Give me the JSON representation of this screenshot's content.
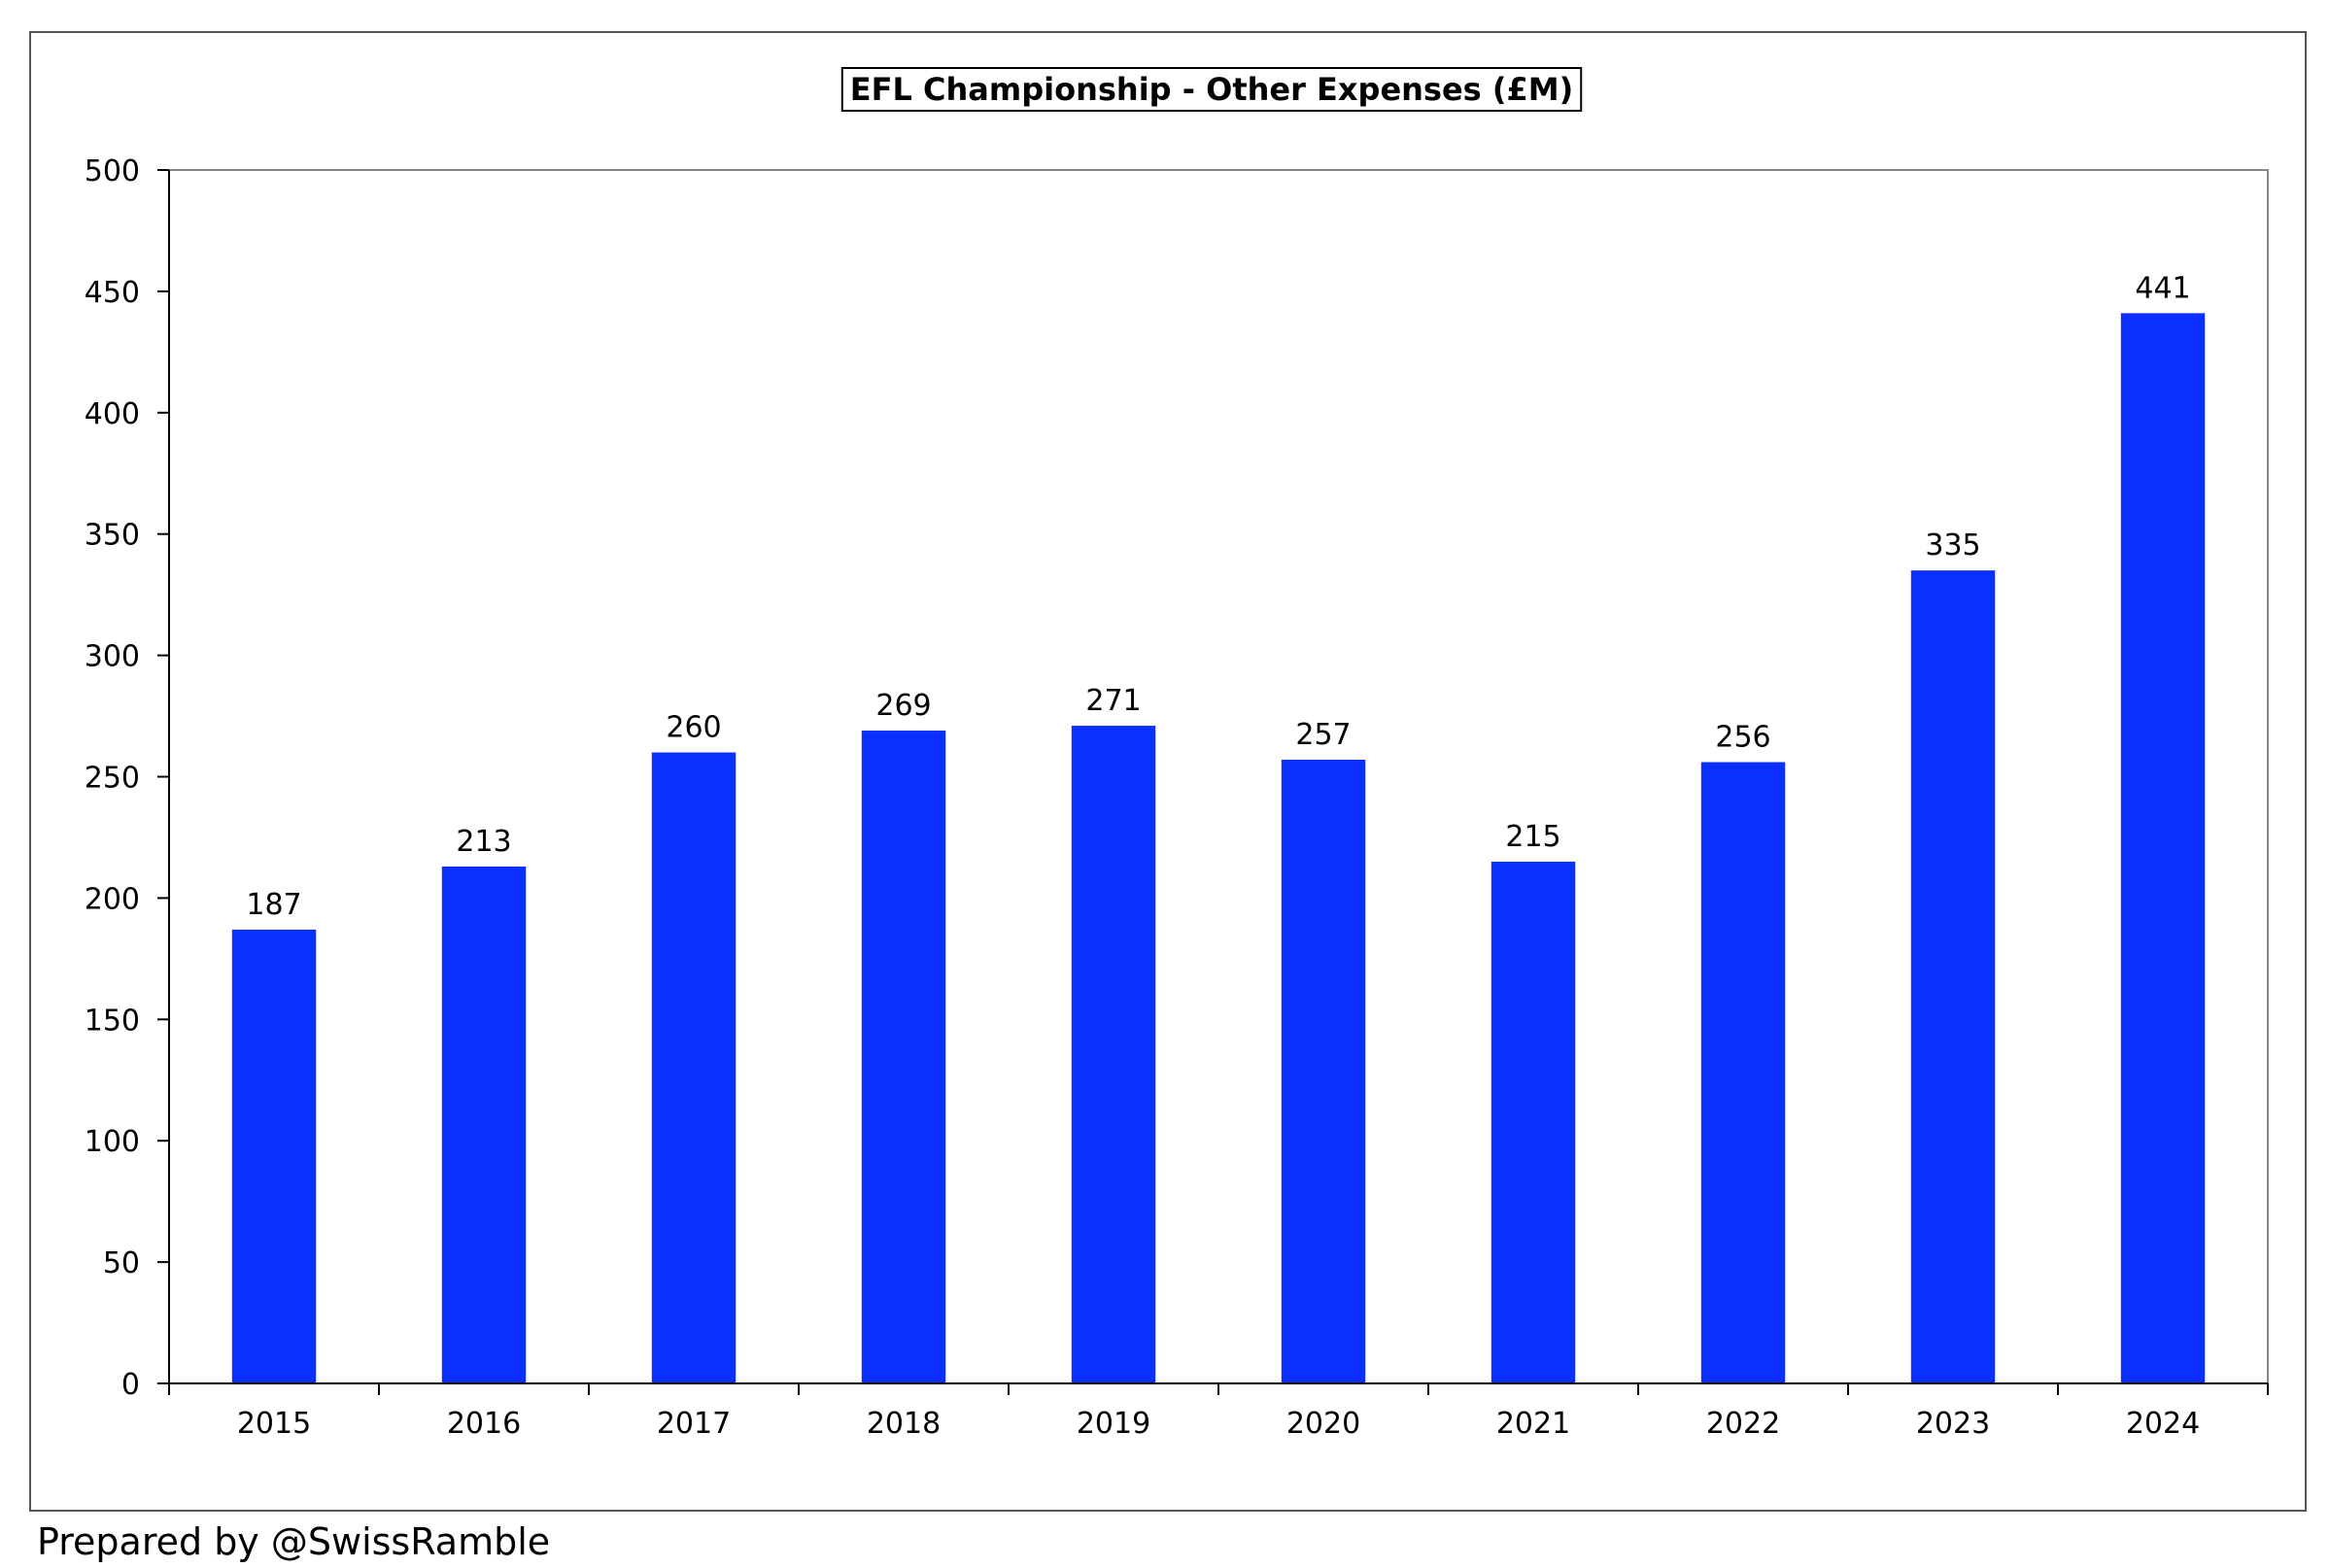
{
  "chart_data": {
    "type": "bar",
    "title": "EFL Championship - Other Expenses (£M)",
    "xlabel": "",
    "ylabel": "",
    "categories": [
      "2015",
      "2016",
      "2017",
      "2018",
      "2019",
      "2020",
      "2021",
      "2022",
      "2023",
      "2024"
    ],
    "values": [
      187,
      213,
      260,
      269,
      271,
      257,
      215,
      256,
      335,
      441
    ],
    "data_labels": [
      "187",
      "213",
      "260",
      "269",
      "271",
      "257",
      "215",
      "256",
      "335",
      "441"
    ],
    "ylim": [
      0,
      500
    ],
    "yticks": [
      0,
      50,
      100,
      150,
      200,
      250,
      300,
      350,
      400,
      450,
      500
    ],
    "grid": false,
    "legend": "none",
    "bar_color": "#0a2fff"
  },
  "footer": {
    "text": "Prepared by @SwissRamble"
  }
}
